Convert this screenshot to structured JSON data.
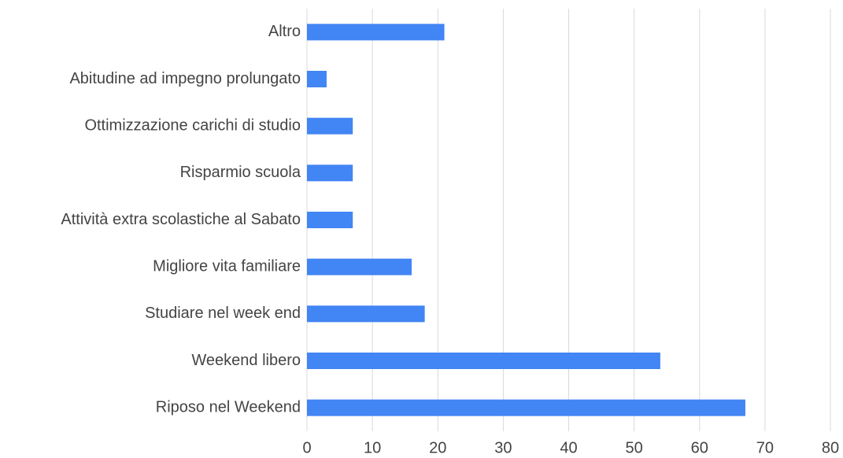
{
  "chart_data": {
    "type": "bar",
    "orientation": "horizontal",
    "categories": [
      "Altro",
      "Abitudine ad impegno prolungato",
      "Ottimizzazione carichi di studio",
      "Risparmio scuola",
      "Attività extra scolastiche al Sabato",
      "Migliore vita familiare",
      "Studiare nel week end",
      "Weekend libero",
      "Riposo nel Weekend"
    ],
    "values": [
      21,
      3,
      7,
      7,
      7,
      16,
      18,
      54,
      67
    ],
    "color": "#4285f4",
    "xlim": [
      0,
      80
    ],
    "xticks": [
      0,
      10,
      20,
      30,
      40,
      50,
      60,
      70,
      80
    ],
    "grid": true
  }
}
